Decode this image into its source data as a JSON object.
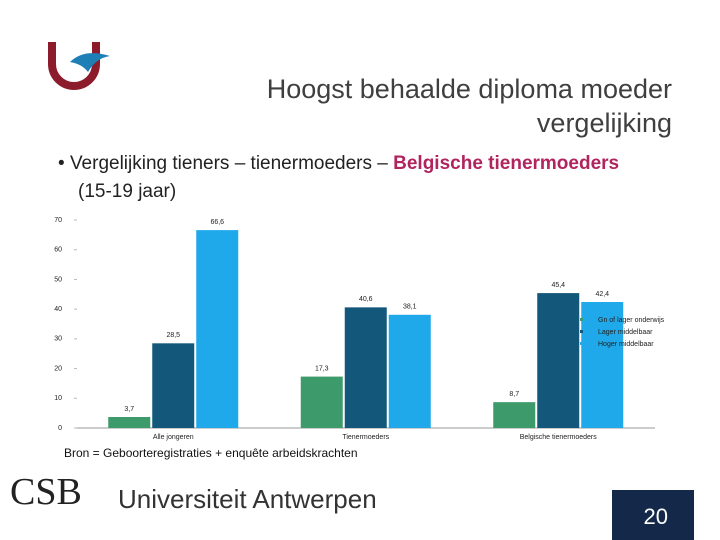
{
  "title": "Hoogst behaalde diploma moeder vergelijking",
  "bullet": {
    "text": "Vergelijking tieners – tienermoeders –",
    "highlight": "Belgische tienermoeders",
    "suffix": "(15-19 jaar)"
  },
  "source": "Bron = Geboorteregistraties + enquête arbeidskrachten",
  "footer": {
    "logo": "CSB",
    "university": "Universiteit Antwerpen",
    "page": "20"
  },
  "chart_data": {
    "type": "bar",
    "categories": [
      "Alle jongeren",
      "Tienermoeders",
      "Belgische tienermoeders"
    ],
    "series": [
      {
        "name": "Gn of lager onderwijs",
        "color": "#3d9a6b",
        "values": [
          3.7,
          17.3,
          8.7
        ],
        "value_labels": [
          "3,7",
          "17,3",
          "8,7"
        ]
      },
      {
        "name": "Lager middelbaar",
        "color": "#13587a",
        "values": [
          28.5,
          40.6,
          45.4
        ],
        "value_labels": [
          "28,5",
          "40,6",
          "45,4"
        ]
      },
      {
        "name": "Hoger middelbaar",
        "color": "#1fa9ea",
        "values": [
          66.6,
          38.1,
          42.4
        ],
        "value_labels": [
          "66,6",
          "38,1",
          "42,4"
        ]
      }
    ],
    "ylim": [
      0,
      70
    ],
    "yticks": [
      0,
      10,
      20,
      30,
      40,
      50,
      60,
      70
    ],
    "grid": false,
    "legend": "right"
  }
}
